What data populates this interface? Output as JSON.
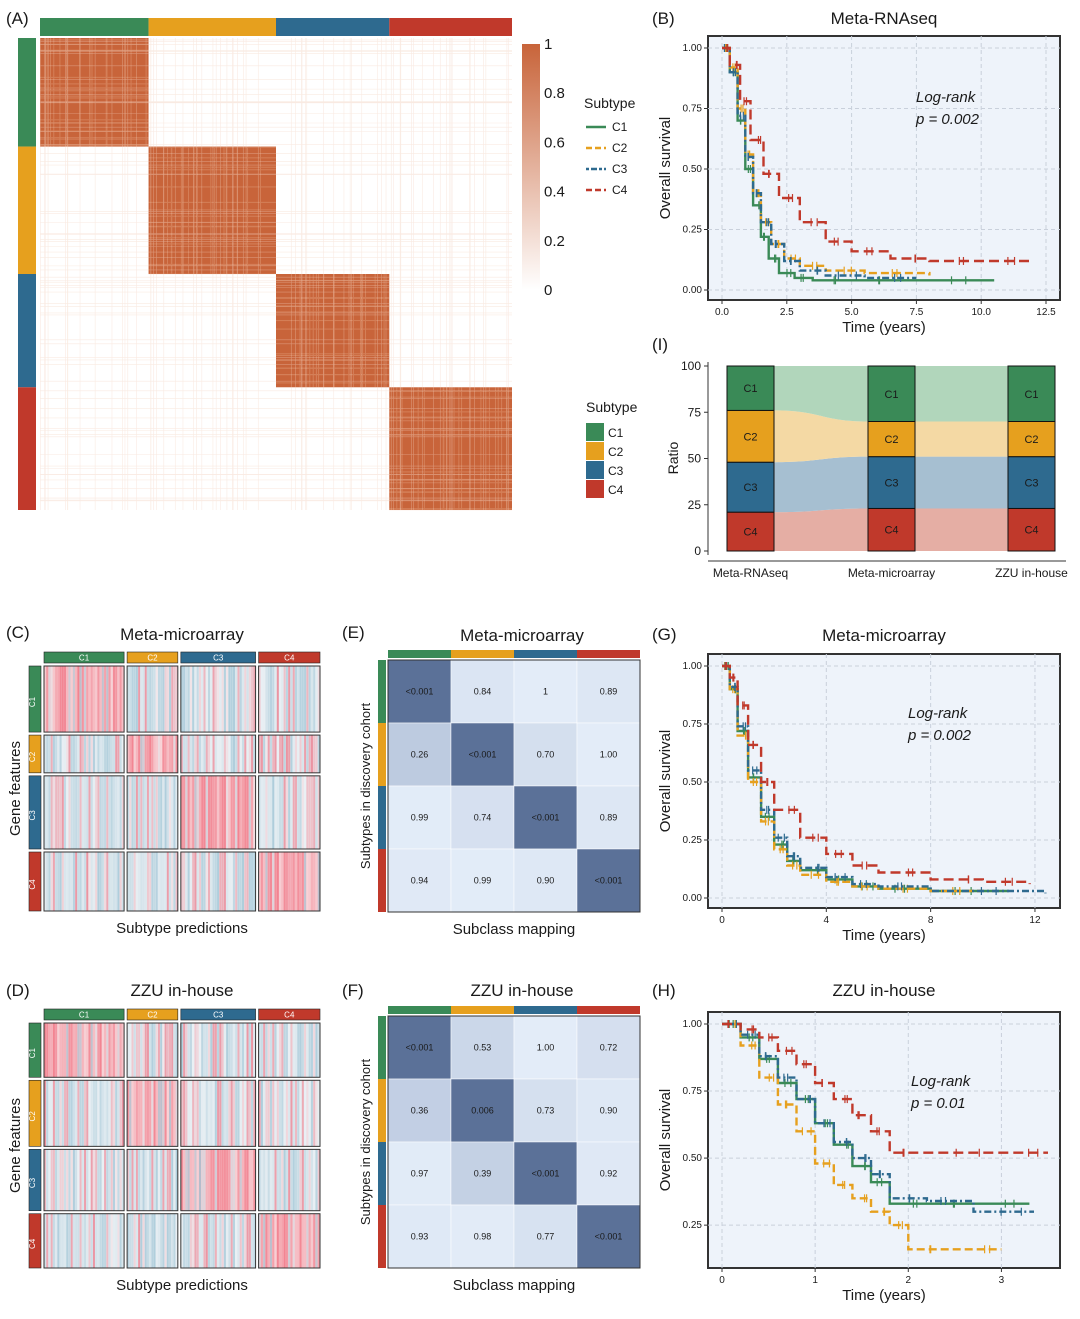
{
  "colors": {
    "C1": "#3a8a57",
    "C2": "#e6a01e",
    "C3": "#2e6a8f",
    "C4": "#c0392b",
    "heat": "#c8643a",
    "kmbg": "#eef3fa",
    "pval": "#5b7198"
  },
  "subtypes": [
    "C1",
    "C2",
    "C3",
    "C4"
  ],
  "panels": {
    "A": {
      "letter": "(A)",
      "scale": [
        "1",
        "0.8",
        "0.6",
        "0.4",
        "0.2",
        "0"
      ],
      "legend_title_lines": "Subtype",
      "legend_title_blocks": "Subtype",
      "block_sizes": [
        0.23,
        0.27,
        0.24,
        0.26
      ]
    },
    "B": {
      "letter": "(B)",
      "title": "Meta-RNAseq",
      "xlabel": "Time (years)",
      "ylabel": "Overall survival",
      "logrank": "Log-rank",
      "pvalue": "p = 0.002",
      "xticks": [
        "0.0",
        "2.5",
        "5.0",
        "7.5",
        "10.0",
        "12.5"
      ],
      "yticks": [
        "0.00",
        "0.25",
        "0.50",
        "0.75",
        "1.00"
      ]
    },
    "C": {
      "letter": "(C)",
      "title": "Meta-microarray",
      "ylabel": "Gene features",
      "xlabel": "Subtype predictions"
    },
    "D": {
      "letter": "(D)",
      "title": "ZZU in-house",
      "ylabel": "Gene features",
      "xlabel": "Subtype predictions"
    },
    "E": {
      "letter": "(E)",
      "title": "Meta-microarray",
      "ylabel": "Subtypes in discovery cohort",
      "xlabel": "Subclass mapping"
    },
    "F": {
      "letter": "(F)",
      "title": "ZZU in-house",
      "ylabel": "Subtypes in discovery cohort",
      "xlabel": "Subclass mapping"
    },
    "G": {
      "letter": "(G)",
      "title": "Meta-microarray",
      "xlabel": "Time (years)",
      "ylabel": "Overall survival",
      "logrank": "Log-rank",
      "pvalue": "p = 0.002",
      "xticks": [
        "0",
        "4",
        "8",
        "12"
      ],
      "yticks": [
        "0.00",
        "0.25",
        "0.50",
        "0.75",
        "1.00"
      ]
    },
    "H": {
      "letter": "(H)",
      "title": "ZZU in-house",
      "xlabel": "Time (years)",
      "ylabel": "Overall survival",
      "logrank": "Log-rank",
      "pvalue": "p = 0.01",
      "xticks": [
        "0",
        "1",
        "2",
        "3"
      ],
      "yticks": [
        "0.25",
        "0.50",
        "0.75",
        "1.00"
      ]
    },
    "I": {
      "letter": "(I)",
      "ylabel": "Ratio",
      "yticks": [
        "0",
        "25",
        "50",
        "75",
        "100"
      ],
      "cohorts": [
        "Meta-RNAseq",
        "Meta-microarray",
        "ZZU in-house"
      ]
    }
  },
  "chart_data": [
    {
      "id": "A",
      "type": "heatmap",
      "title": "",
      "description": "Consensus matrix",
      "categories": [
        "C1",
        "C2",
        "C3",
        "C4"
      ],
      "value_range": [
        0,
        1
      ],
      "colorbar_ticks": [
        1,
        0.8,
        0.6,
        0.4,
        0.2,
        0
      ]
    },
    {
      "id": "B",
      "type": "line",
      "title": "Meta-RNAseq",
      "xlabel": "Time (years)",
      "ylabel": "Overall survival",
      "xlim": [
        0,
        12.5
      ],
      "ylim": [
        0,
        1
      ],
      "series": [
        {
          "name": "C1",
          "x": [
            0,
            0.3,
            0.6,
            0.9,
            1.2,
            1.5,
            1.8,
            2.2,
            2.8,
            3.5,
            5,
            7,
            10.5
          ],
          "y": [
            1,
            0.9,
            0.7,
            0.5,
            0.35,
            0.22,
            0.13,
            0.07,
            0.05,
            0.04,
            0.04,
            0.04,
            0.04
          ]
        },
        {
          "name": "C2",
          "x": [
            0,
            0.3,
            0.6,
            0.9,
            1.2,
            1.5,
            1.9,
            2.4,
            3,
            4,
            5.5,
            8
          ],
          "y": [
            1,
            0.92,
            0.75,
            0.56,
            0.4,
            0.28,
            0.19,
            0.13,
            0.1,
            0.08,
            0.07,
            0.06
          ]
        },
        {
          "name": "C3",
          "x": [
            0,
            0.3,
            0.6,
            0.9,
            1.2,
            1.5,
            1.9,
            2.4,
            3,
            4,
            5.5,
            7.5
          ],
          "y": [
            1,
            0.9,
            0.72,
            0.55,
            0.4,
            0.28,
            0.19,
            0.12,
            0.08,
            0.06,
            0.05,
            0.05
          ]
        },
        {
          "name": "C4",
          "x": [
            0,
            0.3,
            0.7,
            1.1,
            1.6,
            2.2,
            3,
            4,
            5,
            6.5,
            8,
            10,
            12
          ],
          "y": [
            1,
            0.93,
            0.78,
            0.62,
            0.48,
            0.38,
            0.28,
            0.2,
            0.16,
            0.13,
            0.12,
            0.12,
            0.12
          ]
        }
      ],
      "annotation": "Log-rank p = 0.002"
    },
    {
      "id": "C",
      "type": "heatmap",
      "title": "Meta-microarray",
      "xlabel": "Subtype predictions",
      "ylabel": "Gene features",
      "categories": [
        "C1",
        "C2",
        "C3",
        "C4"
      ],
      "col_sizes": [
        0.3,
        0.19,
        0.28,
        0.23
      ],
      "row_sizes": [
        0.28,
        0.16,
        0.31,
        0.25
      ]
    },
    {
      "id": "D",
      "type": "heatmap",
      "title": "ZZU in-house",
      "xlabel": "Subtype predictions",
      "ylabel": "Gene features",
      "categories": [
        "C1",
        "C2",
        "C3",
        "C4"
      ],
      "col_sizes": [
        0.3,
        0.19,
        0.28,
        0.23
      ],
      "row_sizes": [
        0.23,
        0.28,
        0.26,
        0.23
      ]
    },
    {
      "id": "E",
      "type": "heatmap",
      "title": "Meta-microarray",
      "xlabel": "Subclass mapping",
      "ylabel": "Subtypes in discovery cohort",
      "rows": [
        "C1",
        "C2",
        "C3",
        "C4"
      ],
      "cols": [
        "C1",
        "C2",
        "C3",
        "C4"
      ],
      "values": [
        [
          "<0.001",
          "0.84",
          "1",
          "0.89"
        ],
        [
          "0.26",
          "<0.001",
          "0.70",
          "1.00"
        ],
        [
          "0.99",
          "0.74",
          "<0.001",
          "0.89"
        ],
        [
          "0.94",
          "0.99",
          "0.90",
          "<0.001"
        ]
      ]
    },
    {
      "id": "F",
      "type": "heatmap",
      "title": "ZZU in-house",
      "xlabel": "Subclass mapping",
      "ylabel": "Subtypes in discovery cohort",
      "rows": [
        "C1",
        "C2",
        "C3",
        "C4"
      ],
      "cols": [
        "C1",
        "C2",
        "C3",
        "C4"
      ],
      "values": [
        [
          "<0.001",
          "0.53",
          "1.00",
          "0.72"
        ],
        [
          "0.36",
          "0.006",
          "0.73",
          "0.90"
        ],
        [
          "0.97",
          "0.39",
          "<0.001",
          "0.92"
        ],
        [
          "0.93",
          "0.98",
          "0.77",
          "<0.001"
        ]
      ]
    },
    {
      "id": "G",
      "type": "line",
      "title": "Meta-microarray",
      "xlabel": "Time (years)",
      "ylabel": "Overall survival",
      "xlim": [
        0,
        12.5
      ],
      "ylim": [
        0,
        1
      ],
      "series": [
        {
          "name": "C1",
          "x": [
            0,
            0.3,
            0.6,
            1,
            1.5,
            2,
            2.5,
            3,
            4,
            5,
            6,
            8,
            11
          ],
          "y": [
            1,
            0.9,
            0.72,
            0.52,
            0.35,
            0.23,
            0.16,
            0.12,
            0.08,
            0.05,
            0.04,
            0.03,
            0.03
          ]
        },
        {
          "name": "C2",
          "x": [
            0,
            0.3,
            0.6,
            1,
            1.5,
            2,
            2.5,
            3,
            4,
            5,
            6,
            8,
            10
          ],
          "y": [
            1,
            0.9,
            0.7,
            0.5,
            0.33,
            0.21,
            0.14,
            0.1,
            0.07,
            0.05,
            0.04,
            0.03,
            0.03
          ]
        },
        {
          "name": "C3",
          "x": [
            0,
            0.3,
            0.6,
            1,
            1.5,
            2,
            2.5,
            3,
            4,
            5,
            6,
            8,
            12.4
          ],
          "y": [
            1,
            0.91,
            0.74,
            0.55,
            0.38,
            0.26,
            0.18,
            0.13,
            0.09,
            0.06,
            0.05,
            0.03,
            0.02
          ]
        },
        {
          "name": "C4",
          "x": [
            0,
            0.3,
            0.6,
            1,
            1.5,
            2,
            3,
            4,
            5,
            6,
            8,
            10,
            11.8
          ],
          "y": [
            1,
            0.95,
            0.83,
            0.66,
            0.5,
            0.38,
            0.26,
            0.19,
            0.14,
            0.11,
            0.08,
            0.07,
            0.06
          ]
        }
      ],
      "annotation": "Log-rank p = 0.002"
    },
    {
      "id": "H",
      "type": "line",
      "title": "ZZU in-house",
      "xlabel": "Time (years)",
      "ylabel": "Overall survival",
      "xlim": [
        0,
        3.5
      ],
      "ylim": [
        0.12,
        1
      ],
      "series": [
        {
          "name": "C1",
          "x": [
            0,
            0.2,
            0.4,
            0.6,
            0.8,
            1,
            1.2,
            1.4,
            1.6,
            1.8,
            2.2,
            2.8,
            3.3
          ],
          "y": [
            1,
            0.95,
            0.87,
            0.78,
            0.72,
            0.63,
            0.55,
            0.47,
            0.41,
            0.33,
            0.33,
            0.33,
            0.33
          ]
        },
        {
          "name": "C2",
          "x": [
            0,
            0.2,
            0.4,
            0.6,
            0.8,
            1,
            1.2,
            1.4,
            1.6,
            1.8,
            2,
            2.5,
            3
          ],
          "y": [
            1,
            0.92,
            0.8,
            0.7,
            0.6,
            0.48,
            0.4,
            0.35,
            0.3,
            0.25,
            0.16,
            0.16,
            0.16
          ]
        },
        {
          "name": "C3",
          "x": [
            0,
            0.2,
            0.4,
            0.6,
            0.8,
            1,
            1.2,
            1.4,
            1.6,
            1.8,
            2.2,
            2.7,
            3.35
          ],
          "y": [
            1,
            0.96,
            0.88,
            0.8,
            0.72,
            0.63,
            0.56,
            0.5,
            0.44,
            0.35,
            0.34,
            0.3,
            0.3
          ]
        },
        {
          "name": "C4",
          "x": [
            0,
            0.2,
            0.4,
            0.6,
            0.8,
            1,
            1.2,
            1.4,
            1.6,
            1.8,
            2.2,
            3,
            3.5
          ],
          "y": [
            1,
            0.98,
            0.95,
            0.9,
            0.85,
            0.78,
            0.72,
            0.66,
            0.6,
            0.52,
            0.52,
            0.52,
            0.52
          ]
        }
      ],
      "annotation": "Log-rank p = 0.01"
    },
    {
      "id": "I",
      "type": "bar",
      "stacked": true,
      "ylabel": "Ratio",
      "ylim": [
        0,
        100
      ],
      "categories": [
        "Meta-RNAseq",
        "Meta-microarray",
        "ZZU in-house"
      ],
      "series": [
        {
          "name": "C4",
          "values": [
            21,
            23,
            23
          ]
        },
        {
          "name": "C3",
          "values": [
            27,
            28,
            28
          ]
        },
        {
          "name": "C2",
          "values": [
            28,
            19,
            19
          ]
        },
        {
          "name": "C1",
          "values": [
            24,
            30,
            30
          ]
        }
      ]
    }
  ]
}
